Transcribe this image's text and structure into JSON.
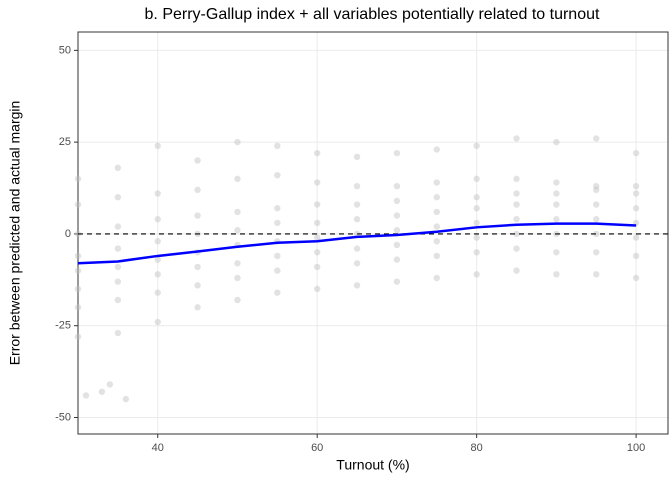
{
  "chart_data": {
    "type": "scatter",
    "title": "b. Perry-Gallup index + all variables potentially related to turnout",
    "x_label": "Turnout (%)",
    "y_label": "Error between predicted and actual margin",
    "xlim": [
      30,
      104
    ],
    "ylim": [
      -54.5,
      55
    ],
    "xticks": [
      40,
      60,
      80,
      100
    ],
    "yticks": [
      -50,
      -25,
      0,
      25,
      50
    ],
    "grid": true,
    "reference_line": 0,
    "series": [
      {
        "type": "scatter",
        "color": "#bebebe",
        "x": [
          30,
          30,
          30,
          30,
          30,
          30,
          30,
          30,
          35,
          35,
          35,
          35,
          35,
          35,
          35,
          35,
          40,
          40,
          40,
          40,
          40,
          40,
          40,
          40,
          45,
          45,
          45,
          45,
          45,
          45,
          45,
          45,
          50,
          50,
          50,
          50,
          50,
          50,
          50,
          50,
          55,
          55,
          55,
          55,
          55,
          55,
          55,
          55,
          60,
          60,
          60,
          60,
          60,
          60,
          60,
          60,
          65,
          65,
          65,
          65,
          65,
          65,
          65,
          65,
          70,
          70,
          70,
          70,
          70,
          70,
          70,
          70,
          75,
          75,
          75,
          75,
          75,
          75,
          75,
          75,
          80,
          80,
          80,
          80,
          80,
          80,
          80,
          80,
          85,
          85,
          85,
          85,
          85,
          85,
          85,
          85,
          90,
          90,
          90,
          90,
          90,
          90,
          90,
          90,
          95,
          95,
          95,
          95,
          95,
          95,
          95,
          95,
          100,
          100,
          100,
          100,
          100,
          100,
          100,
          100,
          31,
          33,
          34,
          36
        ],
        "y": [
          -28,
          -20,
          -15,
          -10,
          -6,
          0,
          8,
          15,
          -27,
          -18,
          -13,
          -9,
          -4,
          2,
          10,
          18,
          -24,
          -16,
          -11,
          -7,
          -2,
          4,
          11,
          24,
          -20,
          -14,
          -9,
          -5,
          0,
          5,
          12,
          20,
          -18,
          -12,
          -8,
          -3,
          1,
          6,
          15,
          25,
          -16,
          -10,
          -6,
          -2,
          3,
          7,
          16,
          24,
          -15,
          -9,
          -5,
          -1,
          3,
          8,
          14,
          22,
          -14,
          -8,
          -4,
          0,
          4,
          8,
          13,
          21,
          -13,
          -7,
          -3,
          1,
          5,
          9,
          13,
          22,
          -12,
          -6,
          -2,
          2,
          6,
          10,
          14,
          23,
          -11,
          -5,
          -1,
          3,
          7,
          10,
          15,
          24,
          -10,
          -4,
          0,
          4,
          8,
          11,
          15,
          26,
          -11,
          -5,
          0,
          4,
          8,
          11,
          14,
          25,
          -11,
          -5,
          0,
          4,
          8,
          12,
          13,
          26,
          -12,
          -6,
          -1,
          3,
          7,
          11,
          13,
          22,
          -44,
          -43,
          -41,
          -45
        ]
      },
      {
        "type": "line",
        "color": "#0000ff",
        "x": [
          30,
          35,
          40,
          45,
          50,
          55,
          60,
          65,
          70,
          75,
          80,
          85,
          90,
          95,
          100
        ],
        "y": [
          -8,
          -7.5,
          -6,
          -4.8,
          -3.5,
          -2.4,
          -2,
          -0.8,
          -0.3,
          0.6,
          1.8,
          2.5,
          2.8,
          2.8,
          2.3
        ]
      }
    ]
  }
}
